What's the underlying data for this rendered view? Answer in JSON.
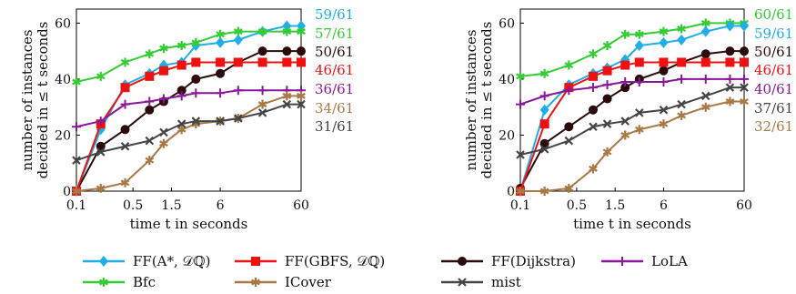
{
  "chart_data": [
    {
      "type": "line",
      "xlabel": "time t in seconds",
      "ylabel": [
        "number of instances",
        "decided in ≤ t seconds"
      ],
      "x_tick_labels": [
        "0.1",
        "0.5",
        "1.5",
        "6",
        "60"
      ],
      "y_tick_labels": [
        "0",
        "20",
        "40",
        "60"
      ],
      "ylim": [
        0,
        65
      ],
      "grid": false,
      "x": [
        0.1,
        0.2,
        0.4,
        0.8,
        1.2,
        2,
        3,
        6,
        10,
        20,
        40,
        60
      ],
      "series": [
        {
          "name": "FF(A*, 𝒟ℚ)",
          "values": [
            0,
            22,
            38,
            42,
            45,
            46,
            52,
            53,
            54,
            57,
            59,
            59
          ],
          "end_label": "59/61",
          "color": "#1faee8",
          "marker": "diamond"
        },
        {
          "name": "BFC",
          "values": [
            39,
            41,
            46,
            49,
            51,
            52,
            53,
            56,
            57,
            57,
            57,
            57
          ],
          "end_label": "57/61",
          "color": "#33cc33",
          "marker": "star"
        },
        {
          "name": "FF(DIJKSTRA)",
          "values": [
            0,
            16,
            22,
            29,
            32,
            36,
            40,
            42,
            46,
            50,
            50,
            50
          ],
          "end_label": "50/61",
          "color": "#2a0a0a",
          "marker": "circle"
        },
        {
          "name": "FF(GBFS, 𝒟ℚ)",
          "values": [
            0,
            24,
            37,
            41,
            43,
            45,
            46,
            46,
            46,
            46,
            46,
            46
          ],
          "end_label": "46/61",
          "color": "#ee1111",
          "marker": "square"
        },
        {
          "name": "LoLA",
          "values": [
            23,
            25,
            31,
            32,
            33,
            34,
            35,
            35,
            36,
            36,
            36,
            36
          ],
          "end_label": "36/61",
          "color": "#8a179a",
          "marker": "plus"
        },
        {
          "name": "ICOVER",
          "values": [
            0,
            1,
            3,
            11,
            17,
            22,
            24,
            25,
            26,
            31,
            34,
            34
          ],
          "end_label": "34/61",
          "color": "#a97845",
          "marker": "star"
        },
        {
          "name": "MIST",
          "values": [
            11,
            14,
            16,
            18,
            21,
            24,
            25,
            25,
            26,
            28,
            31,
            31
          ],
          "end_label": "31/61",
          "color": "#454545",
          "marker": "cross"
        }
      ]
    },
    {
      "type": "line",
      "xlabel": "time t in seconds",
      "ylabel": [
        "number of instances",
        "decided in ≤ t seconds"
      ],
      "x_tick_labels": [
        "0.1",
        "0.5",
        "1.5",
        "6",
        "60"
      ],
      "y_tick_labels": [
        "0",
        "20",
        "40",
        "60"
      ],
      "ylim": [
        0,
        65
      ],
      "grid": false,
      "x": [
        0.1,
        0.2,
        0.4,
        0.8,
        1.2,
        2,
        3,
        6,
        10,
        20,
        40,
        60
      ],
      "series": [
        {
          "name": "BFC",
          "values": [
            41,
            42,
            45,
            49,
            52,
            56,
            56,
            57,
            58,
            60,
            60,
            60
          ],
          "end_label": "60/61",
          "color": "#33cc33",
          "marker": "star"
        },
        {
          "name": "FF(A*, 𝒟ℚ)",
          "values": [
            0,
            29,
            38,
            42,
            44,
            47,
            52,
            53,
            54,
            57,
            59,
            59
          ],
          "end_label": "59/61",
          "color": "#1faee8",
          "marker": "diamond"
        },
        {
          "name": "FF(DIJKSTRA)",
          "values": [
            1,
            17,
            23,
            29,
            33,
            37,
            40,
            43,
            46,
            49,
            50,
            50
          ],
          "end_label": "50/61",
          "color": "#2a0a0a",
          "marker": "circle"
        },
        {
          "name": "FF(GBFS, 𝒟ℚ)",
          "values": [
            0,
            24,
            37,
            41,
            43,
            45,
            46,
            46,
            46,
            46,
            46,
            46
          ],
          "end_label": "46/61",
          "color": "#ee1111",
          "marker": "square"
        },
        {
          "name": "LoLA",
          "values": [
            31,
            34,
            36,
            37,
            38,
            39,
            39,
            39,
            40,
            40,
            40,
            40
          ],
          "end_label": "40/61",
          "color": "#8a179a",
          "marker": "plus"
        },
        {
          "name": "MIST",
          "values": [
            13,
            15,
            18,
            23,
            24,
            25,
            28,
            29,
            31,
            34,
            37,
            37
          ],
          "end_label": "37/61",
          "color": "#454545",
          "marker": "cross"
        },
        {
          "name": "ICOVER",
          "values": [
            0,
            0,
            1,
            8,
            14,
            20,
            22,
            24,
            27,
            30,
            32,
            32
          ],
          "end_label": "32/61",
          "color": "#a97845",
          "marker": "star"
        }
      ]
    }
  ],
  "legend": {
    "placement": "bottom",
    "rows": [
      [
        {
          "label": "FF(A*, 𝒟ℚ)",
          "color": "#1faee8",
          "marker": "diamond"
        },
        {
          "label": "FF(GBFS, 𝒟ℚ)",
          "color": "#ee1111",
          "marker": "square"
        },
        {
          "label": "FF(Dijkstra)",
          "color": "#2a0a0a",
          "marker": "circle"
        },
        {
          "label": "LoLA",
          "color": "#8a179a",
          "marker": "plus"
        }
      ],
      [
        {
          "label": "Bfc",
          "color": "#33cc33",
          "marker": "star"
        },
        {
          "label": "ICover",
          "color": "#a97845",
          "marker": "star"
        },
        {
          "label": "mist",
          "color": "#454545",
          "marker": "cross"
        }
      ]
    ]
  }
}
